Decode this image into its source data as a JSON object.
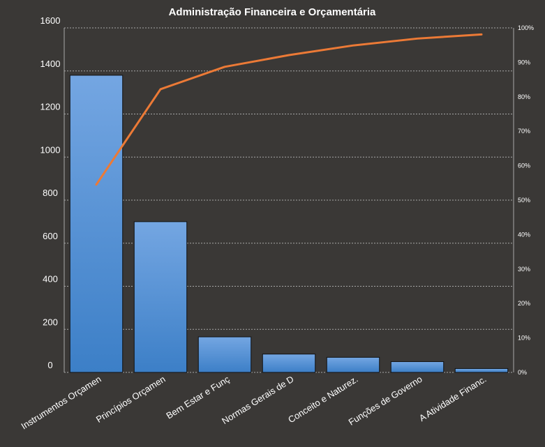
{
  "chart_data": {
    "type": "bar",
    "title": "Administração  Financeira  e Orçamentária",
    "xlabel": "",
    "ylabel": "",
    "categories": [
      "Instrumentos  Orçamen",
      "Princípios Orçamen",
      "Bem Estar e Funç",
      "Normas Gerais de D",
      "Conceito e Naturez.",
      "Funções de Governo",
      "A Atividade Financ."
    ],
    "series": [
      {
        "type": "bar",
        "axis": "primary",
        "values": [
          1380,
          700,
          165,
          85,
          70,
          50,
          18
        ]
      },
      {
        "type": "line",
        "axis": "secondary",
        "values": [
          54.5,
          82.2,
          88.7,
          92.1,
          94.9,
          96.9,
          98.1
        ]
      }
    ],
    "ylim": [
      0,
      1600
    ],
    "y_ticks": [
      "0",
      "200",
      "400",
      "600",
      "800",
      "1000",
      "1200",
      "1400",
      "1600"
    ],
    "y2lim": [
      0,
      100
    ],
    "y2_ticks": [
      "0%",
      "10%",
      "20%",
      "30%",
      "40%",
      "50%",
      "60%",
      "70%",
      "80%",
      "90%",
      "100%"
    ],
    "grid": true,
    "legend": "none",
    "colors": {
      "background": "#3a3836",
      "bar_top": "#74a6e2",
      "bar_bottom": "#3c7fc7",
      "bar_edge": "#111111",
      "line": "#ec7a36",
      "grid": "#a8a8a8",
      "text": "#ffffff"
    }
  }
}
